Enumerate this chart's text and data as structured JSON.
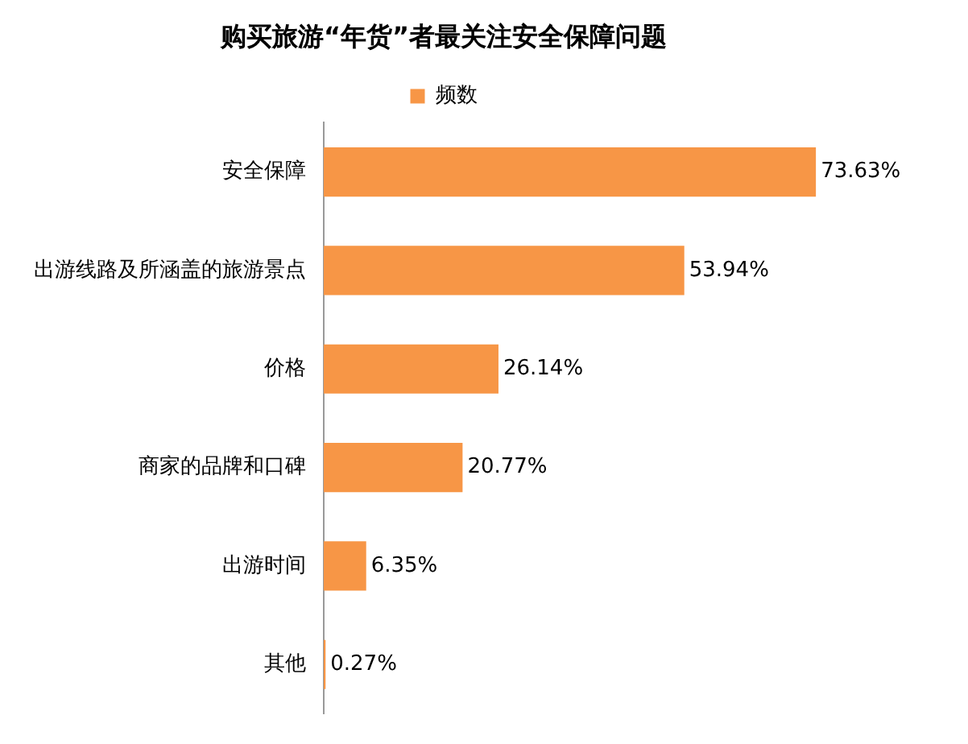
{
  "chart_data": {
    "type": "bar",
    "orientation": "horizontal",
    "title": "购买旅游“年货”者最关注安全保障问题",
    "categories": [
      "安全保障",
      "出游线路及所涵盖的旅游景点",
      "价格",
      "商家的品牌和口碑",
      "出游时间",
      "其他"
    ],
    "series": [
      {
        "name": "频数",
        "color": "#f79646",
        "values": [
          73.63,
          53.94,
          26.14,
          20.77,
          6.35,
          0.27
        ],
        "value_labels": [
          "73.63%",
          "53.94%",
          "26.14%",
          "20.77%",
          "6.35%",
          "0.27%"
        ]
      }
    ],
    "legend": "top",
    "grid": false
  }
}
